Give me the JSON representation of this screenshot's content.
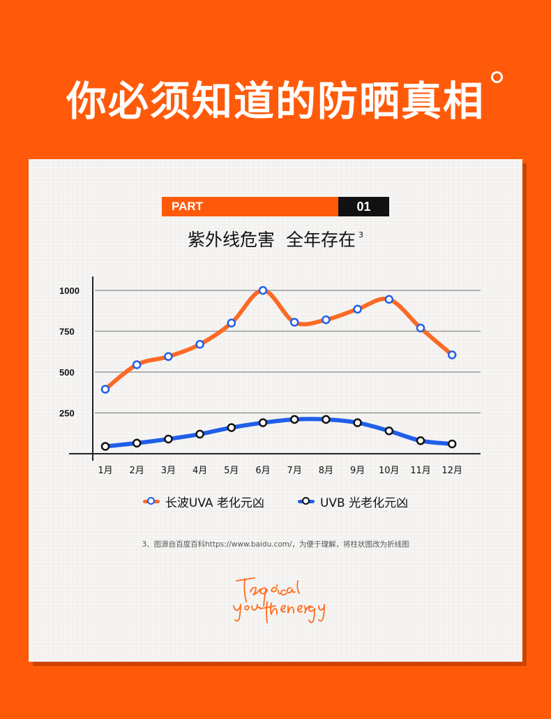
{
  "page": {
    "title": "你必须知道的防晒真相",
    "part_label": "PART",
    "part_number": "01",
    "subtitle": "紫外线危害  全年存在",
    "subtitle_note": "3",
    "footnote": "3、图源自百度百科https://www.baidu.com/，为便于理解，将柱状图改为折线图",
    "signature": [
      "Tropical",
      "your the energy"
    ]
  },
  "colors": {
    "background": "#ff5a0a",
    "uva": "#fb6a26",
    "uvb": "#1f5fe8",
    "uva_marker": "#1f5fe8",
    "uvb_marker": "#111111",
    "signature": "#ff6a1a"
  },
  "chart_data": {
    "type": "line",
    "categories": [
      "1月",
      "2月",
      "3月",
      "4月",
      "5月",
      "6月",
      "7月",
      "8月",
      "9月",
      "10月",
      "11月",
      "12月"
    ],
    "series": [
      {
        "name": "长波UVA 老化元凶",
        "values": [
          395,
          545,
          595,
          670,
          800,
          1000,
          805,
          820,
          885,
          945,
          770,
          605
        ]
      },
      {
        "name": "UVB 光老化元凶",
        "values": [
          45,
          65,
          90,
          120,
          160,
          190,
          210,
          210,
          190,
          140,
          80,
          60
        ]
      }
    ],
    "y_ticks": [
      "250",
      "500",
      "750",
      "1000"
    ],
    "ylim": [
      0,
      1000
    ],
    "grid": true,
    "legend": "bottom",
    "xlabel": "",
    "ylabel": ""
  }
}
